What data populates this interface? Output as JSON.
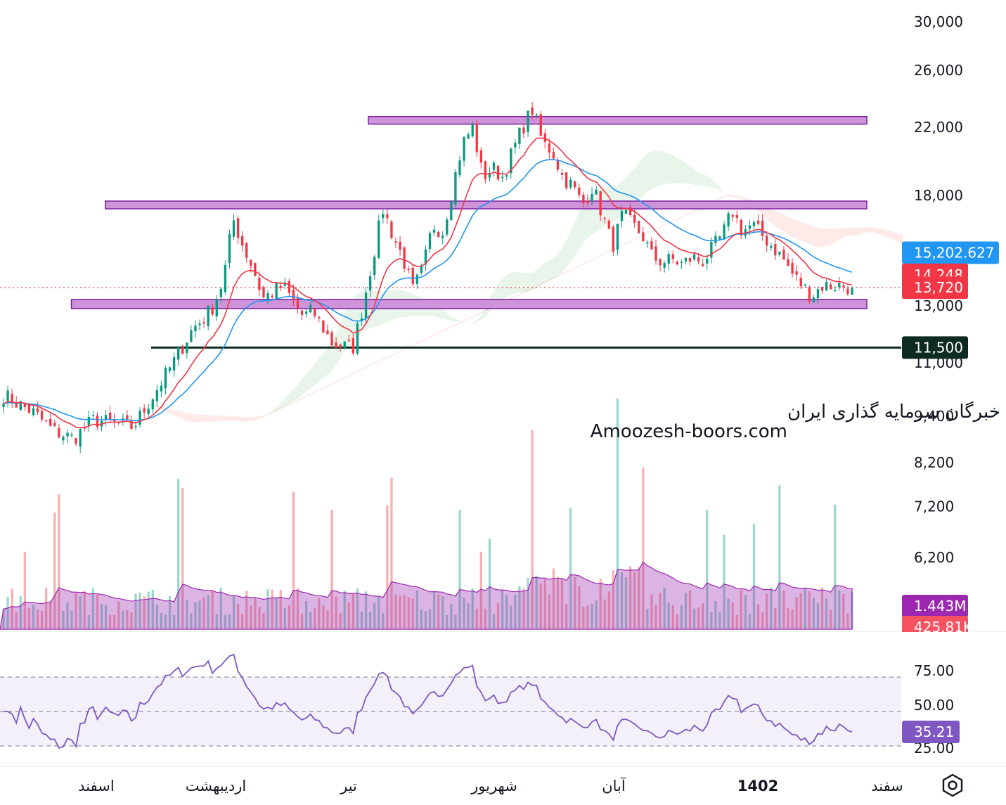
{
  "chart_data": {
    "type": "candlestick",
    "symbol_watermark": {
      "line1": "انجمن خبرگان سرمایه گذاری ایران",
      "line2": "Amoozesh-boors.com"
    },
    "price_axis": {
      "scale": "log",
      "ticks": [
        "30,000",
        "26,000",
        "22,000",
        "18,000",
        "13,000",
        "11,000",
        "9,400",
        "8,200",
        "7,200",
        "6,200"
      ],
      "tick_values": [
        30000,
        26000,
        22000,
        18000,
        13000,
        11000,
        9400,
        8200,
        7200,
        6200
      ]
    },
    "time_axis": {
      "labels": [
        "اسفند",
        "اردیبهشت",
        "تیر",
        "شهریور",
        "آبان",
        "1402",
        "سفند"
      ]
    },
    "price_badges": [
      {
        "label": "15,202.627",
        "value": 15202.627,
        "color": "#2196f3"
      },
      {
        "label": "14,248",
        "value": 14248,
        "color": "#f23645"
      },
      {
        "label": "13,720",
        "value": 13720,
        "color": "#f23645"
      },
      {
        "label": "11,500",
        "value": 11500,
        "color": "#0d2b22"
      }
    ],
    "volume_badges": [
      {
        "label": "1.443M",
        "color": "#9c27b0"
      },
      {
        "label": "425.81K",
        "color": "#f7525f"
      }
    ],
    "rsi": {
      "ticks": [
        "75.00",
        "50.00",
        "25.00"
      ],
      "tick_values": [
        75,
        50,
        25
      ],
      "current_label": "35.21",
      "current": 35.21,
      "color": "#7e57c2"
    },
    "zones": [
      {
        "name": "resistance-zone-top",
        "low": 22200,
        "high": 22700,
        "x_start": 43,
        "x_end": 100
      },
      {
        "name": "resistance-zone-mid",
        "low": 17300,
        "high": 17700,
        "x_start": 12,
        "x_end": 100
      },
      {
        "name": "support-zone",
        "low": 12900,
        "high": 13250,
        "x_start": 8,
        "x_end": 100
      }
    ],
    "horizontal_line": {
      "value": 11500,
      "color": "#0d2b22"
    },
    "current_price_line": {
      "value": 13720,
      "color": "#f23645"
    },
    "ohlc_anchor_path": [
      [
        0,
        10000
      ],
      [
        3,
        9500
      ],
      [
        5,
        9000
      ],
      [
        7,
        8800
      ],
      [
        9,
        9300
      ],
      [
        11,
        9200
      ],
      [
        13,
        9100
      ],
      [
        15,
        10000
      ],
      [
        17,
        11000
      ],
      [
        19,
        12200
      ],
      [
        20,
        12500
      ],
      [
        21,
        13000
      ],
      [
        22,
        14000
      ],
      [
        23,
        16800
      ],
      [
        24,
        15500
      ],
      [
        25,
        14500
      ],
      [
        26,
        13300
      ],
      [
        28,
        13800
      ],
      [
        30,
        12600
      ],
      [
        31,
        12800
      ],
      [
        33,
        11600
      ],
      [
        35,
        11500
      ],
      [
        36,
        13000
      ],
      [
        37,
        15000
      ],
      [
        38,
        17300
      ],
      [
        39,
        16000
      ],
      [
        40,
        15000
      ],
      [
        41,
        13600
      ],
      [
        42,
        14500
      ],
      [
        43,
        16500
      ],
      [
        44,
        16200
      ],
      [
        45,
        18500
      ],
      [
        46,
        21000
      ],
      [
        47,
        22000
      ],
      [
        48,
        19000
      ],
      [
        49,
        19500
      ],
      [
        50,
        19000
      ],
      [
        51,
        20500
      ],
      [
        52,
        22000
      ],
      [
        53,
        23200
      ],
      [
        54,
        21000
      ],
      [
        55,
        20500
      ],
      [
        56,
        19000
      ],
      [
        57,
        18500
      ],
      [
        58,
        17500
      ],
      [
        59,
        18500
      ],
      [
        60,
        17000
      ],
      [
        61,
        15500
      ],
      [
        62,
        17000
      ],
      [
        63,
        16500
      ],
      [
        64,
        16000
      ],
      [
        65,
        15000
      ],
      [
        66,
        14800
      ],
      [
        67,
        14900
      ],
      [
        68,
        14700
      ],
      [
        69,
        15000
      ],
      [
        70,
        14800
      ],
      [
        72,
        16000
      ],
      [
        73,
        17200
      ],
      [
        74,
        16200
      ],
      [
        75,
        16500
      ],
      [
        76,
        16000
      ],
      [
        77,
        15500
      ],
      [
        78,
        15000
      ],
      [
        79,
        14300
      ],
      [
        80,
        13800
      ],
      [
        81,
        13400
      ],
      [
        82,
        13800
      ],
      [
        84,
        13800
      ],
      [
        85,
        13720
      ]
    ],
    "series": [
      {
        "name": "EMA short",
        "color": "#f23645"
      },
      {
        "name": "EMA long",
        "color": "#2196f3"
      },
      {
        "name": "Ichimoku cloud bullish",
        "color": "#4caf50"
      },
      {
        "name": "Ichimoku cloud bearish",
        "color": "#ff5252"
      },
      {
        "name": "Volume MA",
        "color": "#9c27b0"
      }
    ]
  }
}
